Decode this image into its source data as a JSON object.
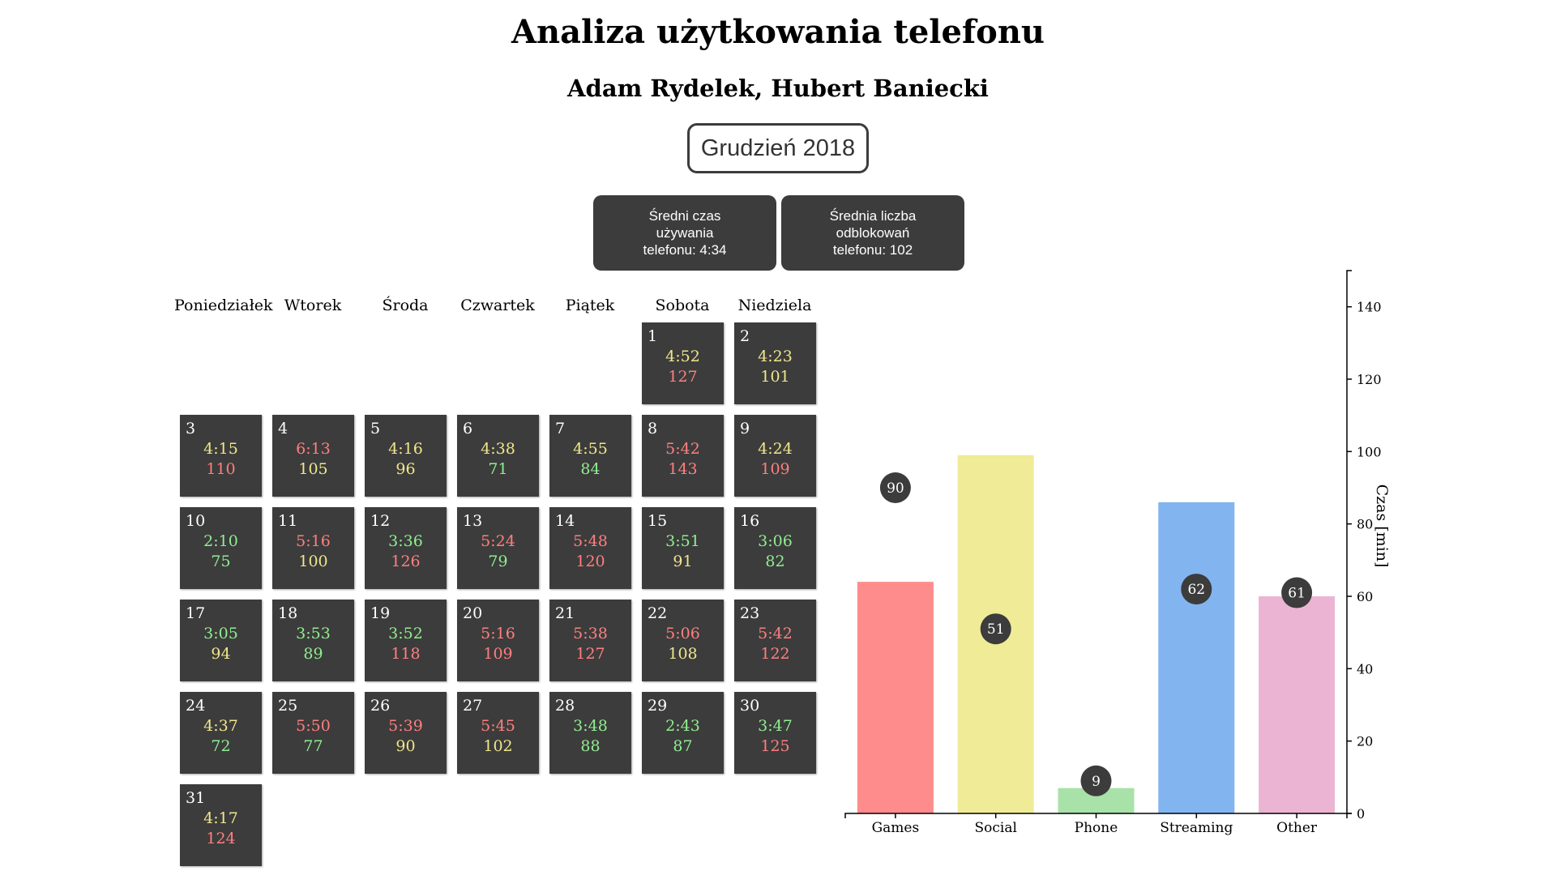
{
  "title": "Analiza użytkowania telefonu",
  "authors": "Adam Rydelek, Hubert Baniecki",
  "month_button": "Grudzień 2018",
  "stats": {
    "avg_time": "Średni czas używania telefonu: 4:34",
    "avg_unlocks": "Średnia liczba odblokowań telefonu: 102"
  },
  "weekdays": [
    "Poniedziałek",
    "Wtorek",
    "Środa",
    "Czwartek",
    "Piątek",
    "Sobota",
    "Niedziela"
  ],
  "colors": {
    "green": "#90ee90",
    "yellow": "#f0e68c",
    "red": "#ff7f7f",
    "cell_bg": "#3c3c3c"
  },
  "calendar": [
    {
      "day": "1",
      "weekday": "Sobota",
      "time": "4:52",
      "time_level": "yellow",
      "unlocks": "127",
      "unlocks_level": "red"
    },
    {
      "day": "2",
      "weekday": "Niedziela",
      "time": "4:23",
      "time_level": "yellow",
      "unlocks": "101",
      "unlocks_level": "yellow"
    },
    {
      "day": "3",
      "weekday": "Poniedziałek",
      "time": "4:15",
      "time_level": "yellow",
      "unlocks": "110",
      "unlocks_level": "red"
    },
    {
      "day": "4",
      "weekday": "Wtorek",
      "time": "6:13",
      "time_level": "red",
      "unlocks": "105",
      "unlocks_level": "yellow"
    },
    {
      "day": "5",
      "weekday": "Środa",
      "time": "4:16",
      "time_level": "yellow",
      "unlocks": "96",
      "unlocks_level": "yellow"
    },
    {
      "day": "6",
      "weekday": "Czwartek",
      "time": "4:38",
      "time_level": "yellow",
      "unlocks": "71",
      "unlocks_level": "green"
    },
    {
      "day": "7",
      "weekday": "Piątek",
      "time": "4:55",
      "time_level": "yellow",
      "unlocks": "84",
      "unlocks_level": "green"
    },
    {
      "day": "8",
      "weekday": "Sobota",
      "time": "5:42",
      "time_level": "red",
      "unlocks": "143",
      "unlocks_level": "red"
    },
    {
      "day": "9",
      "weekday": "Niedziela",
      "time": "4:24",
      "time_level": "yellow",
      "unlocks": "109",
      "unlocks_level": "red"
    },
    {
      "day": "10",
      "weekday": "Poniedziałek",
      "time": "2:10",
      "time_level": "green",
      "unlocks": "75",
      "unlocks_level": "green"
    },
    {
      "day": "11",
      "weekday": "Wtorek",
      "time": "5:16",
      "time_level": "red",
      "unlocks": "100",
      "unlocks_level": "yellow"
    },
    {
      "day": "12",
      "weekday": "Środa",
      "time": "3:36",
      "time_level": "green",
      "unlocks": "126",
      "unlocks_level": "red"
    },
    {
      "day": "13",
      "weekday": "Czwartek",
      "time": "5:24",
      "time_level": "red",
      "unlocks": "79",
      "unlocks_level": "green"
    },
    {
      "day": "14",
      "weekday": "Piątek",
      "time": "5:48",
      "time_level": "red",
      "unlocks": "120",
      "unlocks_level": "red"
    },
    {
      "day": "15",
      "weekday": "Sobota",
      "time": "3:51",
      "time_level": "green",
      "unlocks": "91",
      "unlocks_level": "yellow"
    },
    {
      "day": "16",
      "weekday": "Niedziela",
      "time": "3:06",
      "time_level": "green",
      "unlocks": "82",
      "unlocks_level": "green"
    },
    {
      "day": "17",
      "weekday": "Poniedziałek",
      "time": "3:05",
      "time_level": "green",
      "unlocks": "94",
      "unlocks_level": "yellow"
    },
    {
      "day": "18",
      "weekday": "Wtorek",
      "time": "3:53",
      "time_level": "green",
      "unlocks": "89",
      "unlocks_level": "green"
    },
    {
      "day": "19",
      "weekday": "Środa",
      "time": "3:52",
      "time_level": "green",
      "unlocks": "118",
      "unlocks_level": "red"
    },
    {
      "day": "20",
      "weekday": "Czwartek",
      "time": "5:16",
      "time_level": "red",
      "unlocks": "109",
      "unlocks_level": "red"
    },
    {
      "day": "21",
      "weekday": "Piątek",
      "time": "5:38",
      "time_level": "red",
      "unlocks": "127",
      "unlocks_level": "red"
    },
    {
      "day": "22",
      "weekday": "Sobota",
      "time": "5:06",
      "time_level": "red",
      "unlocks": "108",
      "unlocks_level": "yellow"
    },
    {
      "day": "23",
      "weekday": "Niedziela",
      "time": "5:42",
      "time_level": "red",
      "unlocks": "122",
      "unlocks_level": "red"
    },
    {
      "day": "24",
      "weekday": "Poniedziałek",
      "time": "4:37",
      "time_level": "yellow",
      "unlocks": "72",
      "unlocks_level": "green"
    },
    {
      "day": "25",
      "weekday": "Wtorek",
      "time": "5:50",
      "time_level": "red",
      "unlocks": "77",
      "unlocks_level": "green"
    },
    {
      "day": "26",
      "weekday": "Środa",
      "time": "5:39",
      "time_level": "red",
      "unlocks": "90",
      "unlocks_level": "yellow"
    },
    {
      "day": "27",
      "weekday": "Czwartek",
      "time": "5:45",
      "time_level": "red",
      "unlocks": "102",
      "unlocks_level": "yellow"
    },
    {
      "day": "28",
      "weekday": "Piątek",
      "time": "3:48",
      "time_level": "green",
      "unlocks": "88",
      "unlocks_level": "green"
    },
    {
      "day": "29",
      "weekday": "Sobota",
      "time": "2:43",
      "time_level": "green",
      "unlocks": "87",
      "unlocks_level": "green"
    },
    {
      "day": "30",
      "weekday": "Niedziela",
      "time": "3:47",
      "time_level": "green",
      "unlocks": "125",
      "unlocks_level": "red"
    },
    {
      "day": "31",
      "weekday": "Poniedziałek",
      "time": "4:17",
      "time_level": "yellow",
      "unlocks": "124",
      "unlocks_level": "red"
    }
  ],
  "chart_data": {
    "type": "bar",
    "categories": [
      "Games",
      "Social",
      "Phone",
      "Streaming",
      "Other"
    ],
    "values": [
      64,
      99,
      7,
      86,
      60
    ],
    "bubble_labels": [
      90,
      51,
      9,
      62,
      61
    ],
    "bar_colors": [
      "#ff8c8c",
      "#f0eb96",
      "#a8e2a8",
      "#82b4f0",
      "#ebb4d2"
    ],
    "bubble_color": "#3c3c3c",
    "ylabel": "Czas [min]",
    "ylim": [
      0,
      150
    ],
    "yticks": [
      0,
      20,
      40,
      60,
      80,
      100,
      120,
      140
    ],
    "y_axis_side": "right",
    "grid": false
  }
}
